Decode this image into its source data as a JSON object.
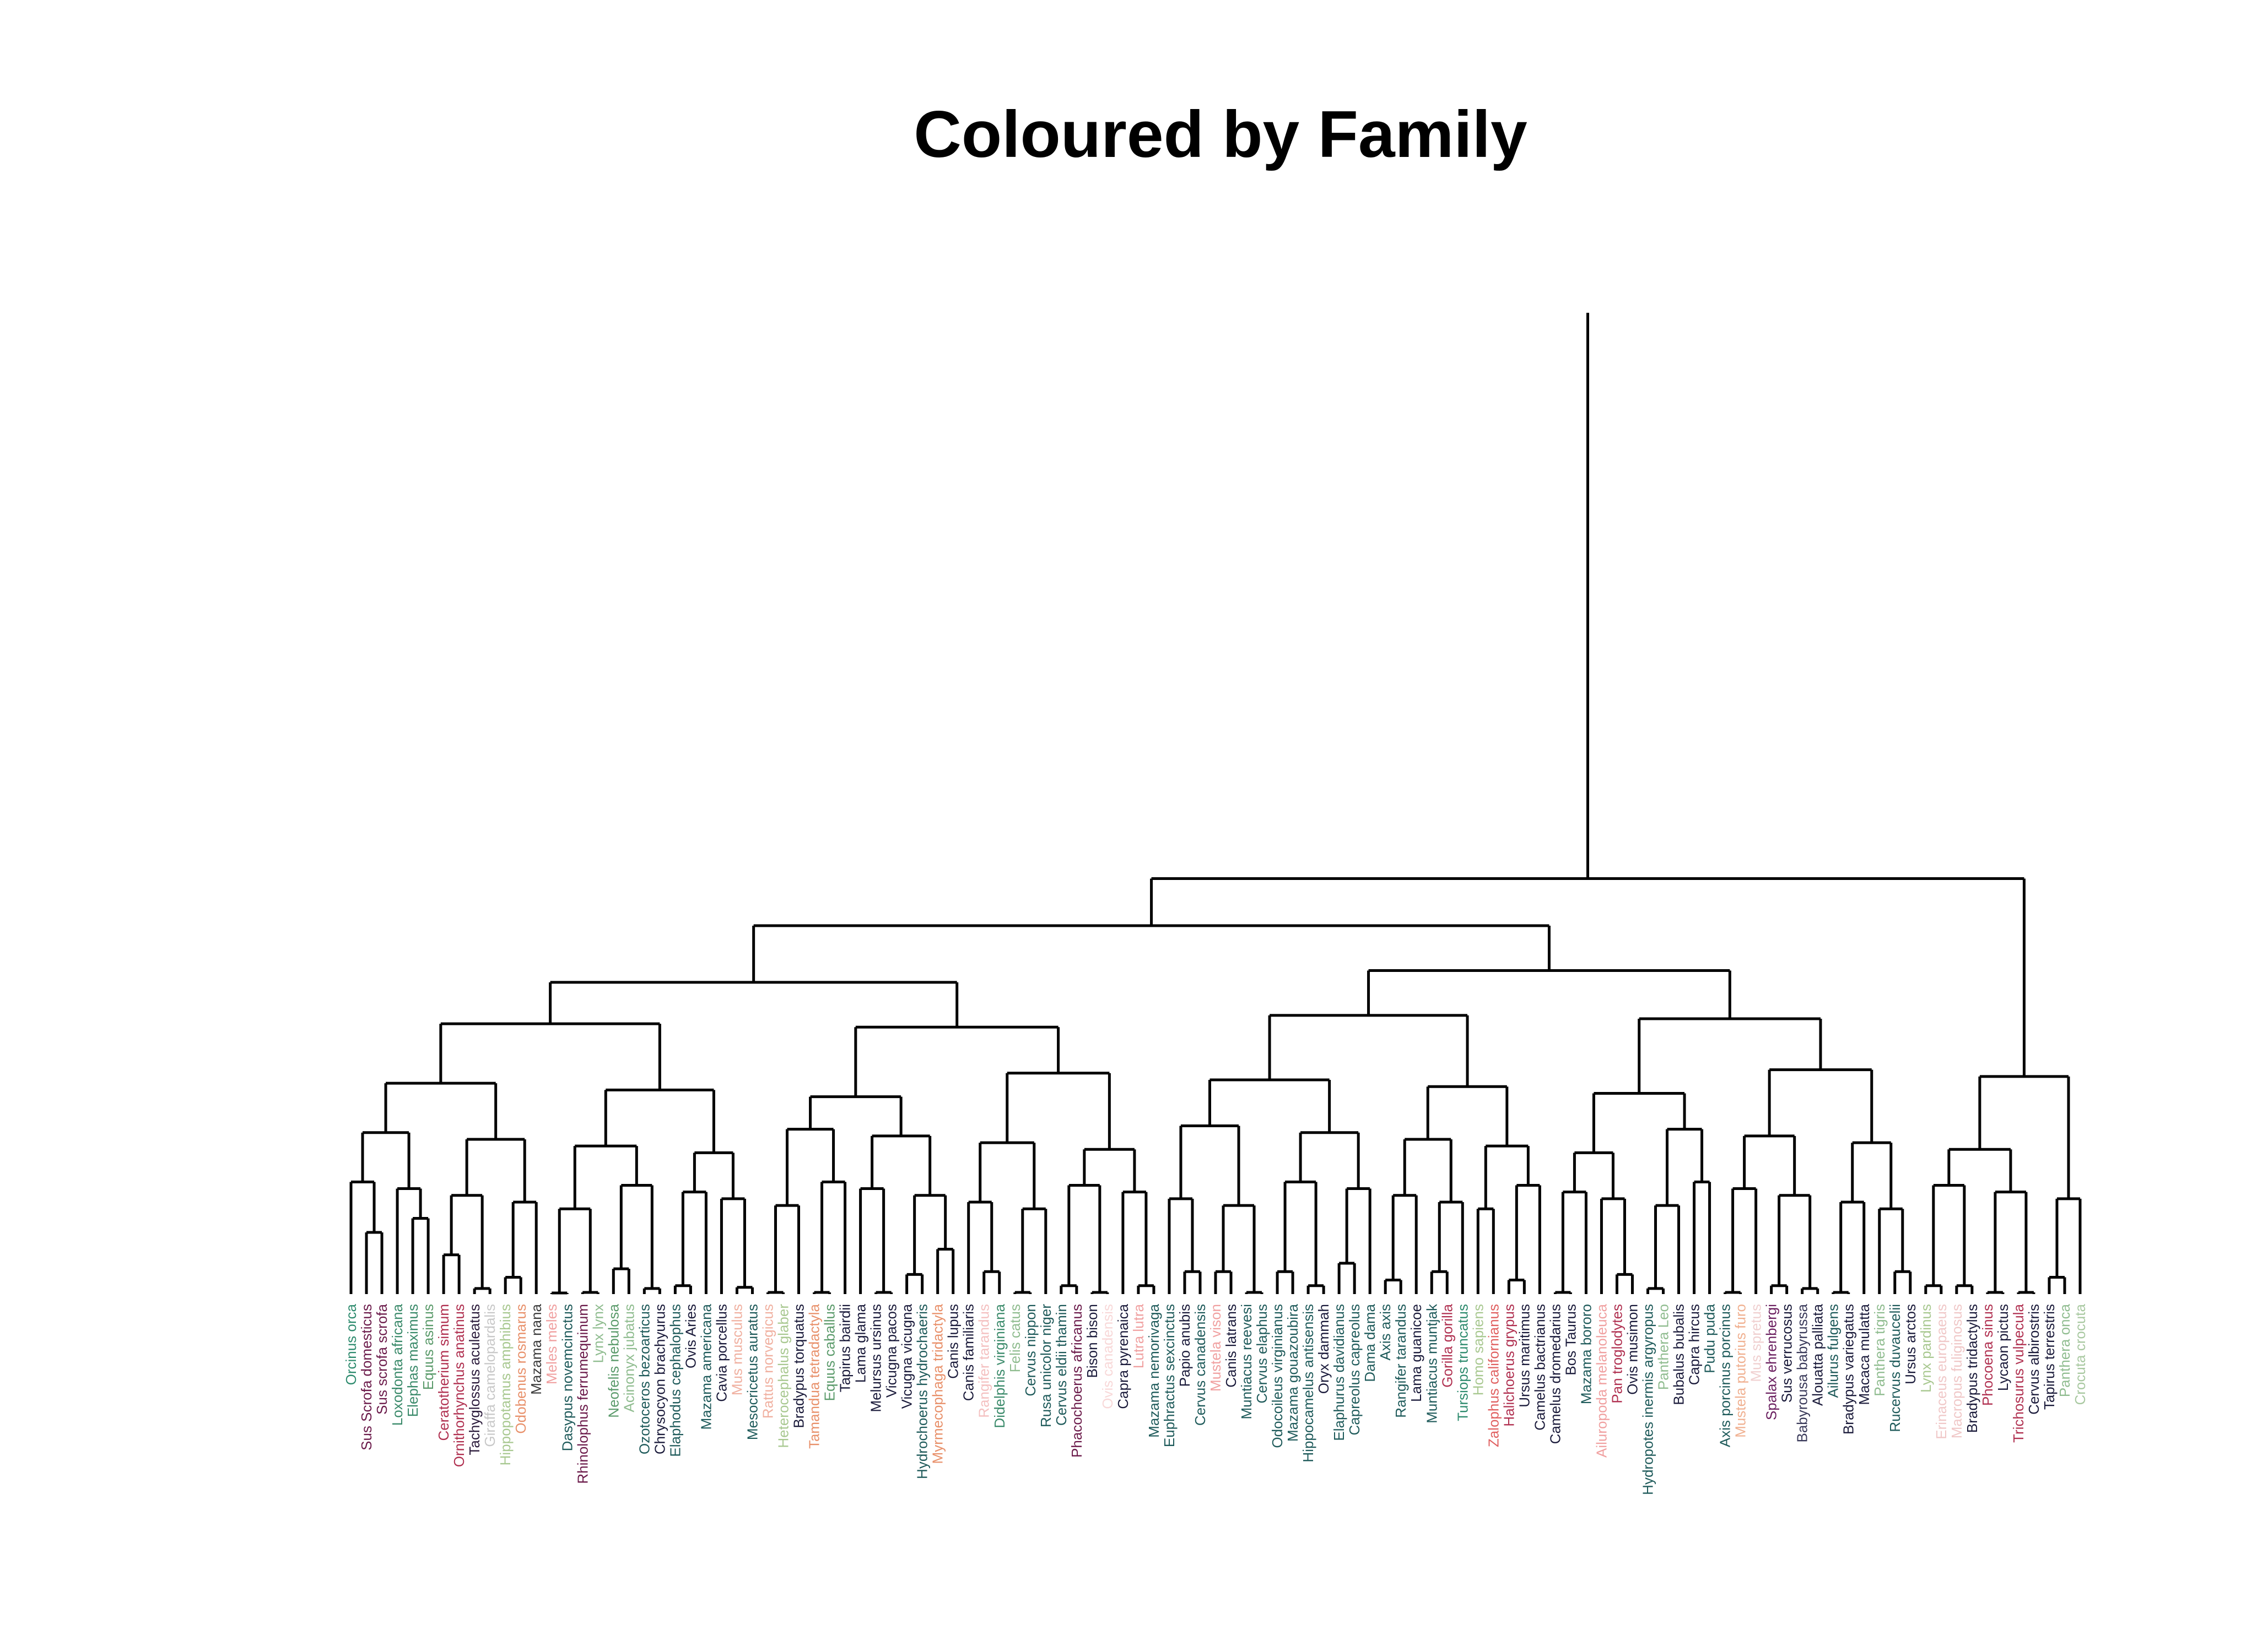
{
  "chart_data": {
    "type": "dendrogram",
    "title": "Coloured by Family",
    "xlabel": "",
    "ylabel": "",
    "height_range": [
      0,
      1.75
    ],
    "grid": false,
    "legend": "none",
    "colors": [
      "#2e8b6e",
      "#6b1a4a",
      "#3a8a6a",
      "#5a9a6a",
      "#8fbc8f",
      "#b03050",
      "#2a1a3a",
      "#a8c890",
      "#e8906a",
      "#3a3a3a",
      "#1e5a5a",
      "#f0a0a0",
      "#1a1a3a",
      "#6b2060",
      "#cccccc"
    ],
    "leaves": [
      {
        "label": "Orcinus orca",
        "color": "#2e8b6e"
      },
      {
        "label": "Sus Scrofa domesticus",
        "color": "#6b1a4a"
      },
      {
        "label": "Sus scrofa scrofa",
        "color": "#6b1a4a"
      },
      {
        "label": "Loxodonta africana",
        "color": "#3a8a6a"
      },
      {
        "label": "Elephas maximus",
        "color": "#3a8a6a"
      },
      {
        "label": "Equus asinus",
        "color": "#5a9a6a"
      },
      {
        "label": "Ceratotherium simum",
        "color": "#b03050"
      },
      {
        "label": "Ornithorhynchus anatinus",
        "color": "#b03050"
      },
      {
        "label": "Tachyglossus aculeatus",
        "color": "#2a1a3a"
      },
      {
        "label": "Giraffa camelopardalis",
        "color": "#c8c8c8"
      },
      {
        "label": "Hippopotamus amphibius",
        "color": "#a8c890"
      },
      {
        "label": "Odobenus rosmarus",
        "color": "#e8906a"
      },
      {
        "label": "Mazama nana",
        "color": "#3a3a3a"
      },
      {
        "label": "Meles meles",
        "color": "#f0a0a0"
      },
      {
        "label": "Dasypus novemcinctus",
        "color": "#1e5a5a"
      },
      {
        "label": "Rhinolophus ferrumequinum",
        "color": "#6b1a4a"
      },
      {
        "label": "Lynx lynx",
        "color": "#8fbc8f"
      },
      {
        "label": "Neofelis nebulosa",
        "color": "#5a9a6a"
      },
      {
        "label": "Acinonyx jubatus",
        "color": "#8fbc8f"
      },
      {
        "label": "Ozotoceros bezoarticus",
        "color": "#1e5a5a"
      },
      {
        "label": "Chrysocyon brachyurus",
        "color": "#1a1a3a"
      },
      {
        "label": "Elaphodus cephalophus",
        "color": "#1e5a5a"
      },
      {
        "label": "Ovis Aries",
        "color": "#1a1a3a"
      },
      {
        "label": "Mazama americana",
        "color": "#1e5a5a"
      },
      {
        "label": "Cavia porcellus",
        "color": "#1a1a3a"
      },
      {
        "label": "Mus musculus",
        "color": "#f0b0a0"
      },
      {
        "label": "Mesocricetus auratus",
        "color": "#1e5a5a"
      },
      {
        "label": "Rattus norvegicus",
        "color": "#f0b0a0"
      },
      {
        "label": "Heterocephalus glaber",
        "color": "#a8c890"
      },
      {
        "label": "Bradypus torquatus",
        "color": "#1a1a3a"
      },
      {
        "label": "Tamandua tetradactyla",
        "color": "#e8906a"
      },
      {
        "label": "Equus caballus",
        "color": "#5a9a6a"
      },
      {
        "label": "Tapirus bairdii",
        "color": "#1a1a3a"
      },
      {
        "label": "Lama glama",
        "color": "#1a1a3a"
      },
      {
        "label": "Melursus ursinus",
        "color": "#1a1a3a"
      },
      {
        "label": "Vicugna pacos",
        "color": "#1a1a3a"
      },
      {
        "label": "Vicugna vicugna",
        "color": "#1a1a3a"
      },
      {
        "label": "Hydrochoerus hydrochaeris",
        "color": "#1e5a5a"
      },
      {
        "label": "Myrmecophaga tridactyla",
        "color": "#e8906a"
      },
      {
        "label": "Canis lupus",
        "color": "#1a1a3a"
      },
      {
        "label": "Canis familiaris",
        "color": "#1a1a3a"
      },
      {
        "label": "Rangifer tarandus",
        "color": "#f4c0c0"
      },
      {
        "label": "Didelphis virginiana",
        "color": "#3a8a6a"
      },
      {
        "label": "Felis catus",
        "color": "#8fbc8f"
      },
      {
        "label": "Cervus nippon",
        "color": "#1e5a5a"
      },
      {
        "label": "Rusa unicolor niger",
        "color": "#1e5a5a"
      },
      {
        "label": "Cervus eldii thamin",
        "color": "#1e5a5a"
      },
      {
        "label": "Phacochoerus africanus",
        "color": "#6b1a4a"
      },
      {
        "label": "Bison bison",
        "color": "#1a1a3a"
      },
      {
        "label": "Ovis canadensis",
        "color": "#f8d8d8"
      },
      {
        "label": "Capra pyrenaica",
        "color": "#1a1a3a"
      },
      {
        "label": "Lutra lutra",
        "color": "#f0a0a0"
      },
      {
        "label": "Mazama nemorivaga",
        "color": "#1e5a5a"
      },
      {
        "label": "Euphractus sexcinctus",
        "color": "#1e5a5a"
      },
      {
        "label": "Papio anubis",
        "color": "#1a1a3a"
      },
      {
        "label": "Cervus canadensis",
        "color": "#1e5a5a"
      },
      {
        "label": "Mustela vison",
        "color": "#f0a0a0"
      },
      {
        "label": "Canis latrans",
        "color": "#1a1a3a"
      },
      {
        "label": "Muntiacus reevesi",
        "color": "#1e5a5a"
      },
      {
        "label": "Cervus elaphus",
        "color": "#1e5a5a"
      },
      {
        "label": "Odocoileus virginianus",
        "color": "#1e5a5a"
      },
      {
        "label": "Mazama gouazoubira",
        "color": "#1e5a5a"
      },
      {
        "label": "Hippocamelus antisensis",
        "color": "#1e5a5a"
      },
      {
        "label": "Oryx dammah",
        "color": "#1a1a3a"
      },
      {
        "label": "Elaphurus davidianus",
        "color": "#1e5a5a"
      },
      {
        "label": "Capreolus capreolus",
        "color": "#1e5a5a"
      },
      {
        "label": "Dama dama",
        "color": "#1e5a5a"
      },
      {
        "label": "Axis axis",
        "color": "#1e5a5a"
      },
      {
        "label": "Rangifer tarandus",
        "color": "#1e5a5a"
      },
      {
        "label": "Lama guanicoe",
        "color": "#1a1a3a"
      },
      {
        "label": "Muntiacus muntjak",
        "color": "#1e5a5a"
      },
      {
        "label": "Gorilla gorilla",
        "color": "#b03050"
      },
      {
        "label": "Tursiops truncatus",
        "color": "#2e8b6e"
      },
      {
        "label": "Homo sapiens",
        "color": "#a8c890"
      },
      {
        "label": "Zalophus californianus",
        "color": "#e06060"
      },
      {
        "label": "Halichoerus grypus",
        "color": "#b03050"
      },
      {
        "label": "Ursus maritimus",
        "color": "#1a1a3a"
      },
      {
        "label": "Camelus bactrianus",
        "color": "#1a1a3a"
      },
      {
        "label": "Camelus dromedarius",
        "color": "#1a1a3a"
      },
      {
        "label": "Bos Taurus",
        "color": "#1a1a3a"
      },
      {
        "label": "Mazama bororo",
        "color": "#1e5a5a"
      },
      {
        "label": "Ailuropoda melanoleuca",
        "color": "#f0a0a0"
      },
      {
        "label": "Pan troglodytes",
        "color": "#b03050"
      },
      {
        "label": "Ovis musimon",
        "color": "#1a1a3a"
      },
      {
        "label": "Hydropotes inermis argyropus",
        "color": "#1e5a5a"
      },
      {
        "label": "Panthera Leo",
        "color": "#8fbc8f"
      },
      {
        "label": "Bubalus bubalis",
        "color": "#1a1a3a"
      },
      {
        "label": "Capra hircus",
        "color": "#1a1a3a"
      },
      {
        "label": "Pudu puda",
        "color": "#1e5a5a"
      },
      {
        "label": "Axis porcinus porcinus",
        "color": "#1e5a5a"
      },
      {
        "label": "Mustela putorius furo",
        "color": "#f0b090"
      },
      {
        "label": "Mus spretus",
        "color": "#f0d0d0"
      },
      {
        "label": "Spalax ehrenbergi",
        "color": "#6b2060"
      },
      {
        "label": "Sus verrucosus",
        "color": "#1a1a3a"
      },
      {
        "label": "Babyrousa babyrussa",
        "color": "#3a3a5a"
      },
      {
        "label": "Alouatta palliata",
        "color": "#1a1a3a"
      },
      {
        "label": "Ailurus fulgens",
        "color": "#1e5a5a"
      },
      {
        "label": "Bradypus variegatus",
        "color": "#1a1a3a"
      },
      {
        "label": "Macaca mulatta",
        "color": "#1a1a3a"
      },
      {
        "label": "Panthera tigris",
        "color": "#8fbc8f"
      },
      {
        "label": "Rucervus duvaucelii",
        "color": "#1e5a5a"
      },
      {
        "label": "Ursus arctos",
        "color": "#1a1a3a"
      },
      {
        "label": "Lynx pardinus",
        "color": "#a8c890"
      },
      {
        "label": "Erinaceus europaeus",
        "color": "#f0c8c8"
      },
      {
        "label": "Macropus fuliginosus",
        "color": "#f0c8c8"
      },
      {
        "label": "Bradypus tridactylus",
        "color": "#1a1a3a"
      },
      {
        "label": "Phocoena sinus",
        "color": "#b03050"
      },
      {
        "label": "Lycaon pictus",
        "color": "#1a1a3a"
      },
      {
        "label": "Trichosurus vulpecula",
        "color": "#b03050"
      },
      {
        "label": "Cervus albirostris",
        "color": "#1a1a3a"
      },
      {
        "label": "Tapirus terrestris",
        "color": "#1a1a3a"
      },
      {
        "label": "Panthera onca",
        "color": "#8fbc8f"
      },
      {
        "label": "Crocuta crocuta",
        "color": "#a8c8a0"
      }
    ],
    "merges": [
      {
        "a": "L1",
        "b": "L2",
        "h": 0.11
      },
      {
        "a": "L4",
        "b": "L5",
        "h": 0.135
      },
      {
        "a": "L6",
        "b": "L7",
        "h": 0.07
      },
      {
        "a": "L8",
        "b": "L9",
        "h": 0.01
      },
      {
        "a": "L10",
        "b": "L11",
        "h": 0.03
      },
      {
        "a": "L13",
        "b": "L14",
        "h": 0.002
      },
      {
        "a": "L15",
        "b": "L16",
        "h": 0.003
      },
      {
        "a": "L17",
        "b": "L18",
        "h": 0.045
      },
      {
        "a": "L19",
        "b": "L20",
        "h": 0.01
      },
      {
        "a": "L21",
        "b": "L22",
        "h": 0.015
      },
      {
        "a": "L25",
        "b": "L26",
        "h": 0.012
      },
      {
        "a": "L27",
        "b": "L28",
        "h": 0.003
      },
      {
        "a": "L30",
        "b": "L31",
        "h": 0.003
      },
      {
        "a": "L34",
        "b": "L35",
        "h": 0.003
      },
      {
        "a": "L36",
        "b": "L37",
        "h": 0.035
      },
      {
        "a": "L38",
        "b": "L39",
        "h": 0.08
      },
      {
        "a": "L41",
        "b": "L42",
        "h": 0.04
      },
      {
        "a": "L43",
        "b": "L44",
        "h": 0.003
      },
      {
        "a": "L46",
        "b": "L47",
        "h": 0.015
      },
      {
        "a": "L48",
        "b": "L49",
        "h": 0.003
      },
      {
        "a": "L51",
        "b": "L52",
        "h": 0.015
      },
      {
        "a": "L54",
        "b": "L55",
        "h": 0.04
      },
      {
        "a": "L56",
        "b": "L57",
        "h": 0.04
      },
      {
        "a": "L58",
        "b": "L59",
        "h": 0.003
      },
      {
        "a": "L60",
        "b": "L61",
        "h": 0.04
      },
      {
        "a": "L62",
        "b": "L63",
        "h": 0.015
      },
      {
        "a": "L64",
        "b": "L65",
        "h": 0.055
      },
      {
        "a": "L67",
        "b": "L68",
        "h": 0.025
      },
      {
        "a": "L70",
        "b": "L71",
        "h": 0.04
      },
      {
        "a": "L75",
        "b": "L76",
        "h": 0.025
      },
      {
        "a": "L78",
        "b": "L79",
        "h": 0.003
      },
      {
        "a": "L82",
        "b": "L83",
        "h": 0.035
      },
      {
        "a": "L84",
        "b": "L85",
        "h": 0.01
      },
      {
        "a": "L89",
        "b": "L90",
        "h": 0.003
      },
      {
        "a": "L92",
        "b": "L93",
        "h": 0.015
      },
      {
        "a": "L94",
        "b": "L95",
        "h": 0.01
      },
      {
        "a": "L96",
        "b": "L97",
        "h": 0.003
      },
      {
        "a": "L100",
        "b": "L101",
        "h": 0.04
      },
      {
        "a": "L102",
        "b": "L103",
        "h": 0.015
      },
      {
        "a": "L104",
        "b": "L105",
        "h": 0.015
      },
      {
        "a": "L106",
        "b": "L107",
        "h": 0.003
      },
      {
        "a": "L108",
        "b": "L109",
        "h": 0.003
      },
      {
        "a": "L110",
        "b": "L111",
        "h": 0.03
      }
    ],
    "top_clusters": [
      {
        "from": 0,
        "to": 11,
        "h": 0.84
      },
      {
        "from": 12,
        "to": 115,
        "h": 0.88
      },
      {
        "from": 0,
        "to": 115,
        "h": 1.75
      }
    ]
  }
}
